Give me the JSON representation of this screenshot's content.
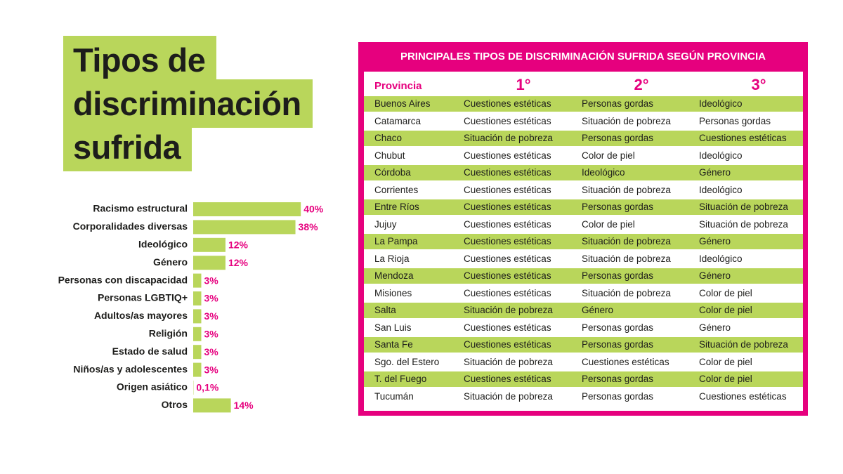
{
  "chart_data": {
    "type": "bar",
    "orientation": "horizontal",
    "title": "Tipos de discriminación sufrida",
    "categories": [
      "Racismo estructural",
      "Corporalidades diversas",
      "Ideológico",
      "Género",
      "Personas con discapacidad",
      "Personas LGBTIQ+",
      "Adultos/as mayores",
      "Religión",
      "Estado de salud",
      "Niños/as y adolescentes",
      "Origen asiático",
      "Otros"
    ],
    "values": [
      40,
      38,
      12,
      12,
      3,
      3,
      3,
      3,
      3,
      3,
      0.1,
      14
    ],
    "value_labels": [
      "40%",
      "38%",
      "12%",
      "12%",
      "3%",
      "3%",
      "3%",
      "3%",
      "3%",
      "3%",
      "0,1%",
      "14%"
    ],
    "color": "#b9d65b",
    "label_color": "#e6007e"
  },
  "table": {
    "title": "PRINCIPALES TIPOS DE DISCRIMINACIÓN SUFRIDA SEGÚN PROVINCIA",
    "columns": [
      "Provincia",
      "1°",
      "2°",
      "3°"
    ],
    "rows": [
      [
        "Buenos Aires",
        "Cuestiones estéticas",
        "Personas gordas",
        "Ideológico"
      ],
      [
        "Catamarca",
        "Cuestiones estéticas",
        "Situación de pobreza",
        "Personas gordas"
      ],
      [
        "Chaco",
        "Situación de pobreza",
        "Personas gordas",
        "Cuestiones estéticas"
      ],
      [
        "Chubut",
        "Cuestiones estéticas",
        "Color de piel",
        "Ideológico"
      ],
      [
        "Córdoba",
        "Cuestiones estéticas",
        "Ideológico",
        "Género"
      ],
      [
        "Corrientes",
        "Cuestiones estéticas",
        "Situación de pobreza",
        "Ideológico"
      ],
      [
        "Entre Ríos",
        "Cuestiones estéticas",
        "Personas gordas",
        "Situación de pobreza"
      ],
      [
        "Jujuy",
        "Cuestiones estéticas",
        "Color de piel",
        "Situación de pobreza"
      ],
      [
        "La Pampa",
        "Cuestiones estéticas",
        "Situación de pobreza",
        "Género"
      ],
      [
        "La Rioja",
        "Cuestiones estéticas",
        "Situación de pobreza",
        "Ideológico"
      ],
      [
        "Mendoza",
        "Cuestiones estéticas",
        "Personas gordas",
        "Género"
      ],
      [
        "Misiones",
        "Cuestiones estéticas",
        "Situación de pobreza",
        "Color de piel"
      ],
      [
        "Salta",
        "Situación de pobreza",
        "Género",
        "Color de piel"
      ],
      [
        "San Luis",
        "Cuestiones estéticas",
        "Personas gordas",
        "Género"
      ],
      [
        "Santa Fe",
        "Cuestiones estéticas",
        "Personas gordas",
        "Situación de pobreza"
      ],
      [
        "Sgo. del Estero",
        "Situación de pobreza",
        "Cuestiones estéticas",
        "Color de piel"
      ],
      [
        "T. del Fuego",
        "Cuestiones estéticas",
        "Personas gordas",
        "Color de piel"
      ],
      [
        "Tucumán",
        "Situación de pobreza",
        "Personas gordas",
        "Cuestiones estéticas"
      ]
    ]
  }
}
